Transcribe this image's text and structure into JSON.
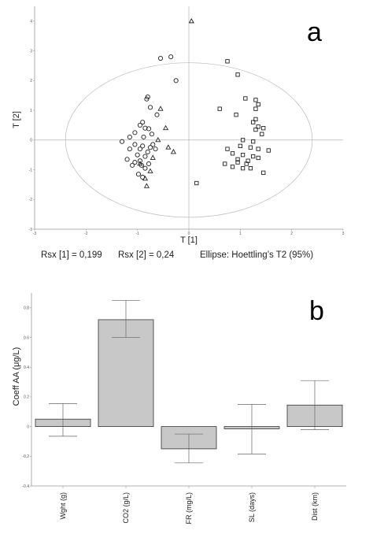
{
  "chart_data": [
    {
      "panel": "a",
      "type": "scatter",
      "xlabel": "T [1]",
      "ylabel": "T [2]",
      "xlim": [
        -3,
        3
      ],
      "ylim": [
        -3,
        4.5
      ],
      "xticks": [
        "-3",
        "-2",
        "-1",
        "0",
        "1",
        "2",
        "3"
      ],
      "yticks": [
        "-3",
        "-2",
        "-1",
        "0",
        "1",
        "2",
        "3",
        "4"
      ],
      "ellipse": {
        "cx": 0,
        "cy": 0,
        "rx": 2.4,
        "ry": 2.6
      },
      "grid": false,
      "series": [
        {
          "marker": "circle",
          "points": [
            [
              -0.55,
              2.75
            ],
            [
              -0.35,
              2.8
            ],
            [
              -0.25,
              2.0
            ],
            [
              -0.8,
              1.45
            ],
            [
              -0.82,
              1.38
            ],
            [
              -0.75,
              1.1
            ],
            [
              -0.62,
              0.85
            ],
            [
              -0.9,
              0.6
            ],
            [
              -0.95,
              0.5
            ],
            [
              -0.85,
              0.4
            ],
            [
              -0.78,
              0.38
            ],
            [
              -1.05,
              0.25
            ],
            [
              -0.72,
              0.2
            ],
            [
              -0.88,
              0.1
            ],
            [
              -1.15,
              0.1
            ],
            [
              -1.3,
              -0.05
            ],
            [
              -1.05,
              -0.15
            ],
            [
              -0.9,
              -0.2
            ],
            [
              -0.75,
              -0.25
            ],
            [
              -0.95,
              -0.3
            ],
            [
              -1.15,
              -0.3
            ],
            [
              -0.8,
              -0.4
            ],
            [
              -1.0,
              -0.5
            ],
            [
              -0.85,
              -0.55
            ],
            [
              -1.2,
              -0.65
            ],
            [
              -0.95,
              -0.7
            ],
            [
              -1.05,
              -0.75
            ],
            [
              -0.78,
              -0.8
            ],
            [
              -0.92,
              -0.85
            ],
            [
              -1.1,
              -0.85
            ],
            [
              -0.85,
              -0.95
            ],
            [
              -0.98,
              -1.15
            ],
            [
              -0.9,
              -1.25
            ],
            [
              -0.65,
              -0.3
            ],
            [
              -0.7,
              -0.15
            ]
          ]
        },
        {
          "marker": "triangle",
          "points": [
            [
              0.05,
              4.0
            ],
            [
              -0.55,
              1.05
            ],
            [
              -0.45,
              0.4
            ],
            [
              -0.6,
              0.0
            ],
            [
              -0.4,
              -0.25
            ],
            [
              -0.3,
              -0.4
            ],
            [
              -0.95,
              -0.8
            ],
            [
              -0.75,
              -1.05
            ],
            [
              -0.85,
              -1.3
            ],
            [
              -0.82,
              -1.55
            ],
            [
              -0.7,
              -0.6
            ]
          ]
        },
        {
          "marker": "square",
          "points": [
            [
              0.75,
              2.65
            ],
            [
              0.95,
              2.2
            ],
            [
              1.1,
              1.4
            ],
            [
              1.3,
              1.35
            ],
            [
              1.35,
              1.2
            ],
            [
              1.3,
              1.05
            ],
            [
              0.6,
              1.05
            ],
            [
              0.92,
              0.85
            ],
            [
              1.3,
              0.7
            ],
            [
              1.25,
              0.6
            ],
            [
              1.35,
              0.45
            ],
            [
              1.45,
              0.4
            ],
            [
              1.3,
              0.35
            ],
            [
              1.42,
              0.2
            ],
            [
              1.05,
              0.0
            ],
            [
              1.25,
              -0.05
            ],
            [
              1.0,
              -0.2
            ],
            [
              1.2,
              -0.25
            ],
            [
              1.35,
              -0.3
            ],
            [
              1.55,
              -0.35
            ],
            [
              0.75,
              -0.3
            ],
            [
              0.85,
              -0.45
            ],
            [
              1.05,
              -0.5
            ],
            [
              1.25,
              -0.55
            ],
            [
              0.95,
              -0.65
            ],
            [
              1.15,
              -0.7
            ],
            [
              0.7,
              -0.8
            ],
            [
              1.12,
              -0.8
            ],
            [
              0.85,
              -0.9
            ],
            [
              1.05,
              -0.95
            ],
            [
              1.2,
              -0.95
            ],
            [
              1.45,
              -1.1
            ],
            [
              0.15,
              -1.45
            ],
            [
              0.95,
              -0.75
            ],
            [
              1.35,
              -0.6
            ]
          ]
        }
      ],
      "caption": {
        "rsx1": "Rsx [1] = 0,199",
        "rsx2": "Rsx [2] = 0,24",
        "ellipse": "Ellipse: Hoettling’s T2 (95%)"
      }
    },
    {
      "panel": "b",
      "type": "bar",
      "ylabel": "Coeff AA (μg/L)",
      "categories": [
        "Wght (g)",
        "CO2 (g/L)",
        "FR (mg/L)",
        "SL (days)",
        "Dist (km)"
      ],
      "values": [
        0.05,
        0.72,
        -0.15,
        -0.015,
        0.145
      ],
      "error_low": [
        -0.065,
        0.6,
        -0.245,
        -0.185,
        -0.02
      ],
      "error_high": [
        0.155,
        0.85,
        -0.05,
        0.15,
        0.31
      ],
      "ylim": [
        -0.4,
        0.9
      ],
      "yticks": [
        "-0.4",
        "-0.2",
        "0",
        "0.2",
        "0.4",
        "0.6",
        "0.8"
      ],
      "bar_color": "#c8c8c8",
      "grid": false
    }
  ]
}
